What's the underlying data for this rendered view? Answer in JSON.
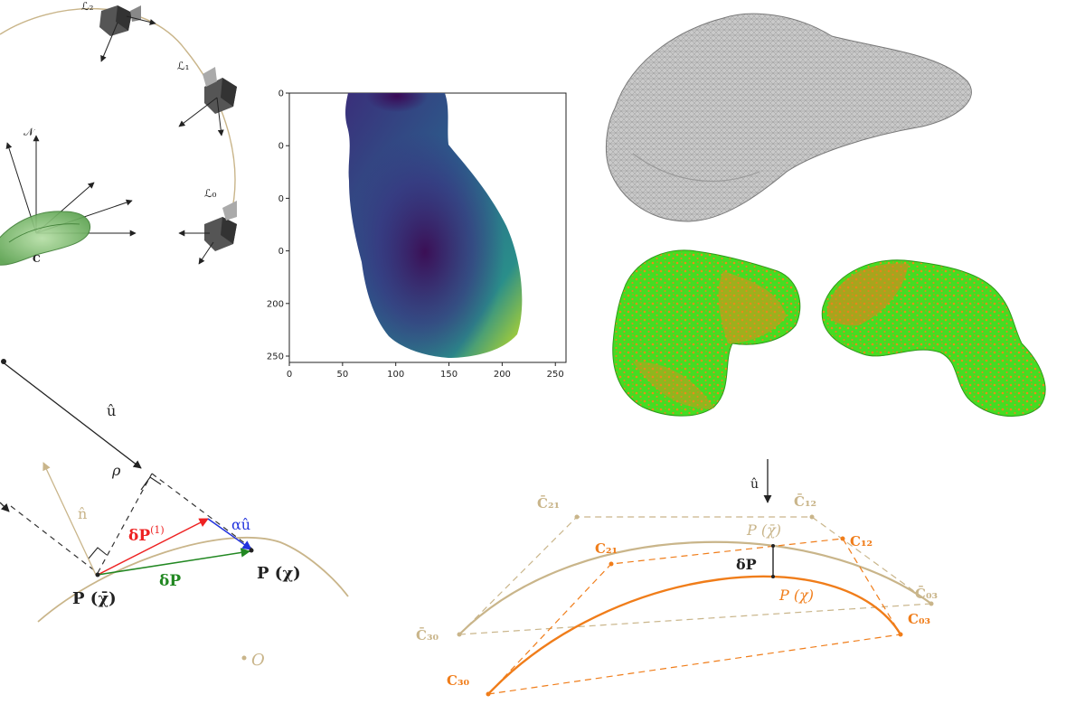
{
  "colors": {
    "tan": "#c9b58a",
    "orange": "#f07d1a",
    "red": "#ee2222",
    "blue": "#2233dd",
    "green": "#228822",
    "mesh_gray": "#b8b8b8",
    "cam_dark": "#4a4a4a"
  },
  "panel_cameras": {
    "cam_labels": [
      "ℒ₂",
      "ℒ₁",
      "ℒ₀"
    ],
    "normal_label": "𝒩",
    "center_label": "C"
  },
  "panel_depth": {
    "x_ticks": [
      "0",
      "50",
      "100",
      "150",
      "200",
      "250"
    ],
    "y_ticks": [
      "0",
      "0",
      "0",
      "0",
      "200",
      "250"
    ]
  },
  "panel_projection": {
    "u_hat": "û",
    "rho": "ρ",
    "n_hat": "n̂",
    "dP1": "δP(1)",
    "dP1_main": "δP",
    "dP1_sup": "(1)",
    "alpha_u": "αû",
    "dP": "δP",
    "P_bar": "P (χ̄)",
    "P_chi": "P (χ)",
    "origin": "O"
  },
  "panel_bezier": {
    "u_hat": "û",
    "C21_bar": "C̄₂₁",
    "C12_bar": "C̄₁₂",
    "C03_bar": "C̄₀₃",
    "C30_bar": "C̄₃₀",
    "C21": "C₂₁",
    "C12": "C₁₂",
    "C03": "C₀₃",
    "C30": "C₃₀",
    "P_bar": "P (χ̄)",
    "P_chi": "P (χ)",
    "dP": "δP"
  }
}
